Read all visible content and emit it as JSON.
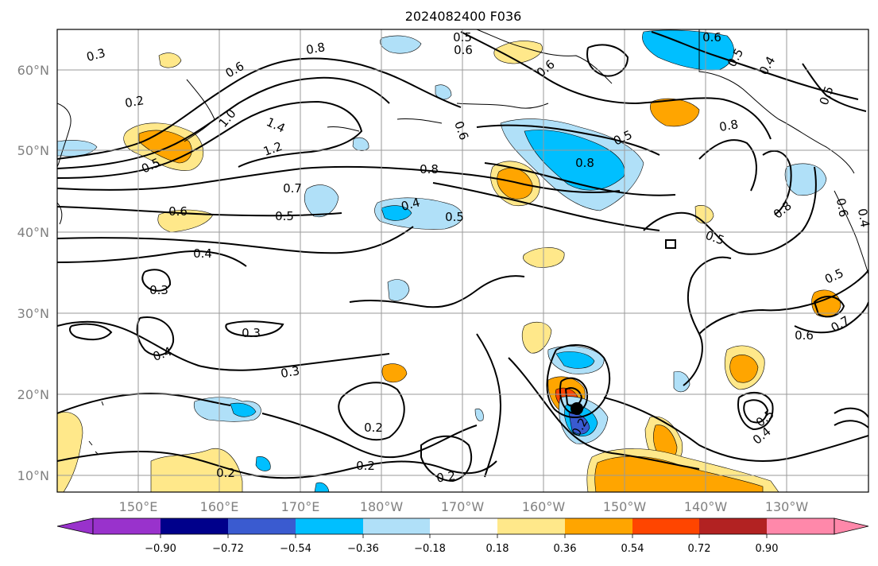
{
  "title": "2024082400 F036",
  "lat_labels": [
    "60°N",
    "50°N",
    "40°N",
    "30°N",
    "20°N",
    "10°N"
  ],
  "lon_labels": [
    "150°E",
    "160°E",
    "170°E",
    "180°W",
    "170°W",
    "160°W",
    "150°W",
    "140°W",
    "130°W"
  ],
  "colorbar": {
    "colors": [
      "#9932cc",
      "#00008b",
      "#3a5bd0",
      "#00bfff",
      "#b0e0f8",
      "#ffffff",
      "#ffe88a",
      "#ffa500",
      "#ff4500",
      "#b22222",
      "#ff88aa"
    ],
    "tick_labels": [
      "−0.90",
      "−0.72",
      "−0.54",
      "−0.36",
      "−0.18",
      "0.18",
      "0.36",
      "0.54",
      "0.72",
      "0.90"
    ]
  },
  "contour_labels": [
    "0.3",
    "0.5",
    "0.6",
    "0.6",
    "0.8",
    "0.6",
    "0.2",
    "1.0",
    "1.4",
    "1.2",
    "0.5",
    "0.7",
    "0.6",
    "0.5",
    "0.4",
    "0.3",
    "0.4",
    "0.3",
    "0.3",
    "0.2",
    "0.2",
    "0.2",
    "0.2",
    "0.4",
    "0.5",
    "0.8",
    "0.5",
    "0.8",
    "0.6",
    "0.8",
    "0.5",
    "0.4",
    "0.5",
    "0.6",
    "0.4",
    "0.8",
    "0.5",
    "0.5",
    "0.6",
    "0.7",
    "0.6",
    "0.2",
    "0.4",
    "0.5"
  ]
}
